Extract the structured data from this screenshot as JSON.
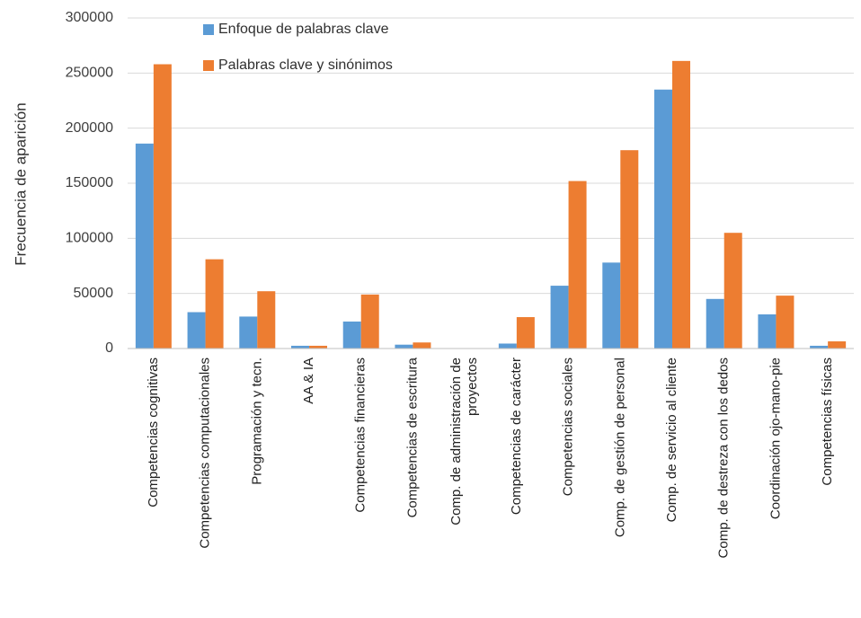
{
  "chart_data": {
    "type": "bar",
    "ylabel": "Frecuencia de aparición",
    "xlabel": "",
    "ylim": [
      0,
      300000
    ],
    "yticks": [
      "0",
      "50000",
      "100000",
      "150000",
      "200000",
      "250000",
      "300000"
    ],
    "grid": true,
    "legend_position": "top",
    "categories": [
      "Competencias cognitivas",
      "Competencias computacionales",
      "Programación y tecn.",
      "AA & IA",
      "Competencias financieras",
      "Competencias de escritura",
      [
        "Comp. de administración de",
        "proyectos"
      ],
      "Competencias de carácter",
      "Competencias sociales",
      "Comp. de gestión de personal",
      "Comp. de servicio al cliente",
      "Comp. de destreza con los dedos",
      "Coordinación ojo-mano-pie",
      "Competencias físicas"
    ],
    "series": [
      {
        "name": "Enfoque de palabras clave",
        "color": "#5b9bd5",
        "values": [
          186000,
          33000,
          29000,
          2500,
          24500,
          3500,
          0,
          4500,
          57000,
          78000,
          235000,
          45000,
          31000,
          2500
        ]
      },
      {
        "name": "Palabras clave y sinónimos",
        "color": "#ed7d31",
        "values": [
          258000,
          81000,
          52000,
          2500,
          49000,
          5500,
          0,
          28500,
          152000,
          180000,
          261000,
          105000,
          48000,
          6500
        ]
      }
    ]
  }
}
